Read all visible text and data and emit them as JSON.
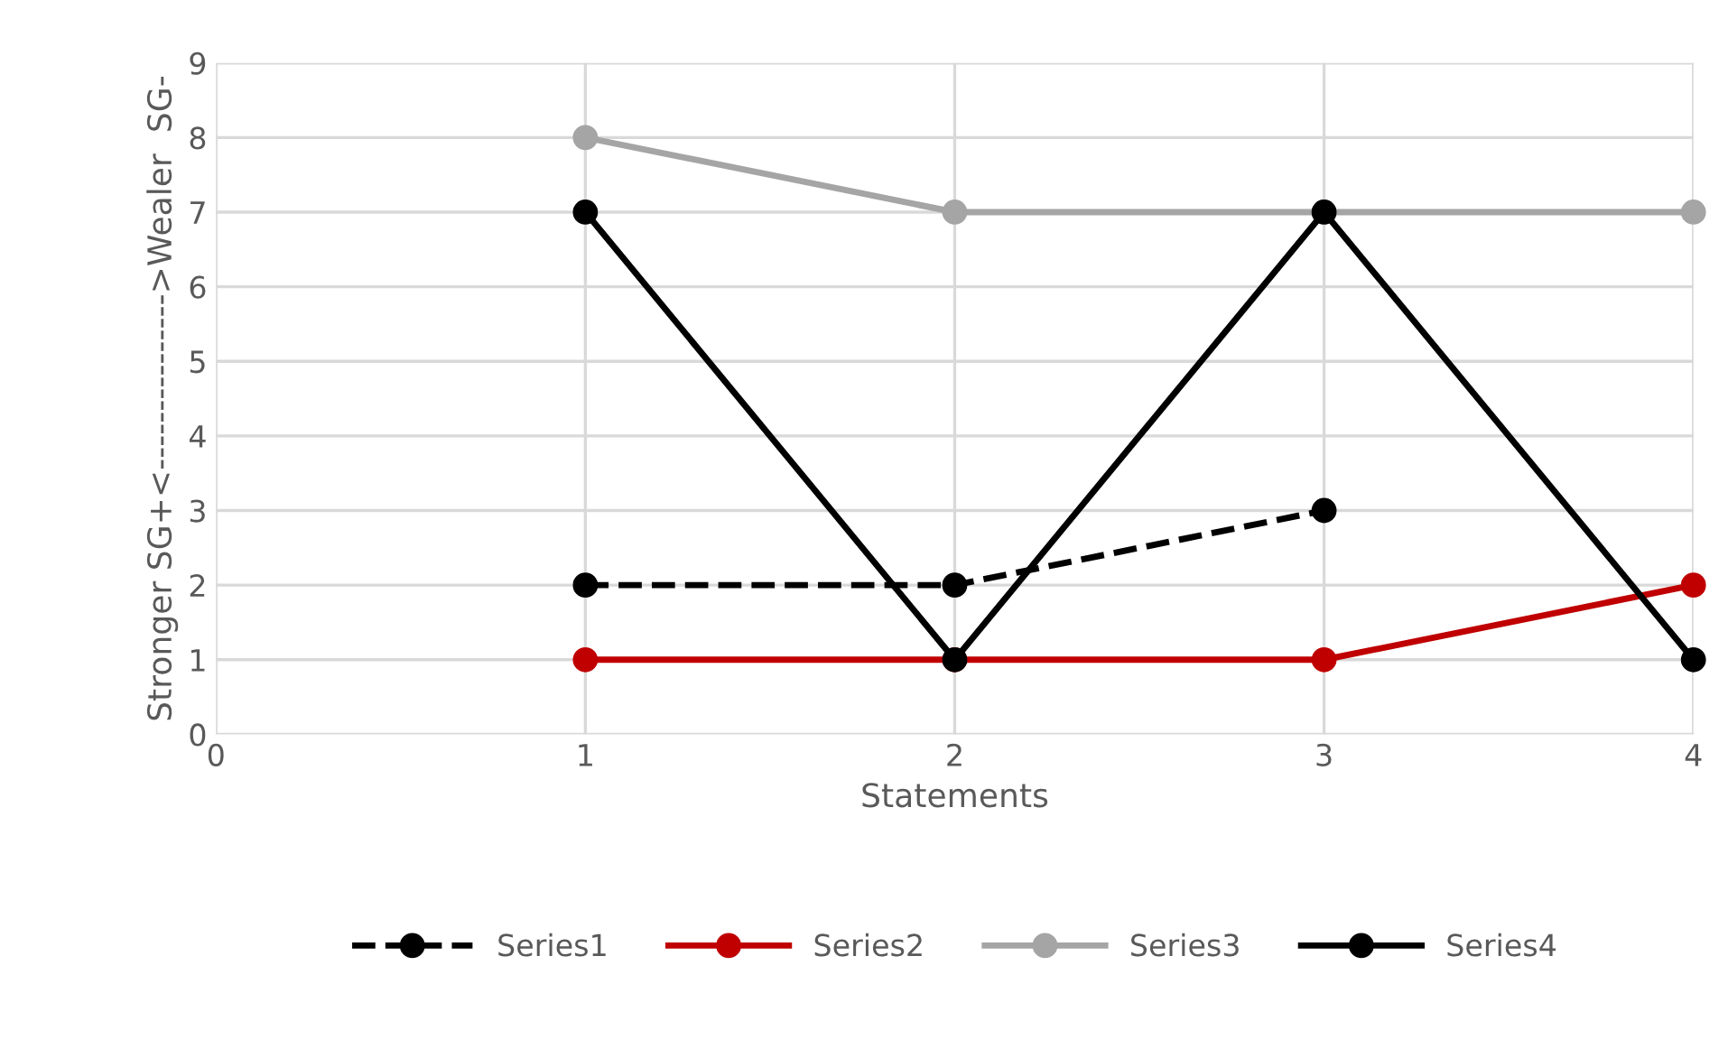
{
  "chart_data": {
    "type": "line",
    "xlabel": "Statements",
    "ylabel": "Stronger SG+<--------------->Wealer  SG-",
    "xlim": [
      0,
      4
    ],
    "xticks": [
      0,
      1,
      2,
      3,
      4
    ],
    "ylim": [
      0,
      9
    ],
    "yticks": [
      0,
      1,
      2,
      3,
      4,
      5,
      6,
      7,
      8,
      9
    ],
    "grid": true,
    "legend": "bottom",
    "marker": "circle",
    "series": [
      {
        "name": "Series1",
        "color": "#000000",
        "line_style": "dashed",
        "x": [
          1,
          2,
          3
        ],
        "values": [
          2,
          2,
          3
        ]
      },
      {
        "name": "Series2",
        "color": "#c00000",
        "x": [
          1,
          2,
          3,
          4
        ],
        "values": [
          1,
          1,
          1,
          2
        ]
      },
      {
        "name": "Series3",
        "color": "#a5a5a5",
        "x": [
          1,
          2,
          3,
          4
        ],
        "values": [
          8,
          7,
          7,
          7
        ]
      },
      {
        "name": "Series4",
        "color": "#000000",
        "x": [
          1,
          2,
          3,
          4
        ],
        "values": [
          7,
          1,
          7,
          1
        ]
      }
    ]
  }
}
